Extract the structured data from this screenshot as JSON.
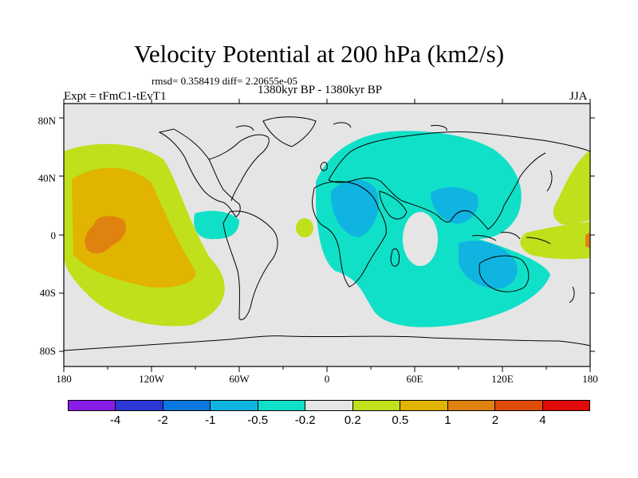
{
  "title": "Velocity Potential at 200 hPa (km2/s)",
  "stats": "rmsd= 0.358419 diff= 2.20655e-05",
  "expt": "Expt = tFmC1-tEvT1",
  "period": "1380kyr BP - 1380kyr BP",
  "season": "JJA",
  "map": {
    "ocean_color": "#e5e5e5",
    "coast_color": "#000000",
    "lat_labels": [
      "80N",
      "40N",
      "0",
      "40S",
      "80S"
    ],
    "lon_labels": [
      "180",
      "120W",
      "60W",
      "0",
      "60E",
      "120E",
      "180"
    ]
  },
  "colorbar": {
    "colors": [
      "#8a1ce8",
      "#2c38d6",
      "#0a78e0",
      "#10b4e0",
      "#10e0c8",
      "#e5e5e5",
      "#c0e01c",
      "#e0b400",
      "#e08210",
      "#e04c08",
      "#e00a0a"
    ],
    "labels": [
      "-4",
      "-2",
      "-1",
      "-0.5",
      "-0.2",
      "0.2",
      "0.5",
      "1",
      "2",
      "4"
    ]
  },
  "contour_colors": {
    "neg_weak": "#10e0c8",
    "neg_mid": "#10b4e0",
    "pos_weak": "#c0e01c",
    "pos_mid": "#e0b400",
    "pos_strong": "#e08210"
  }
}
